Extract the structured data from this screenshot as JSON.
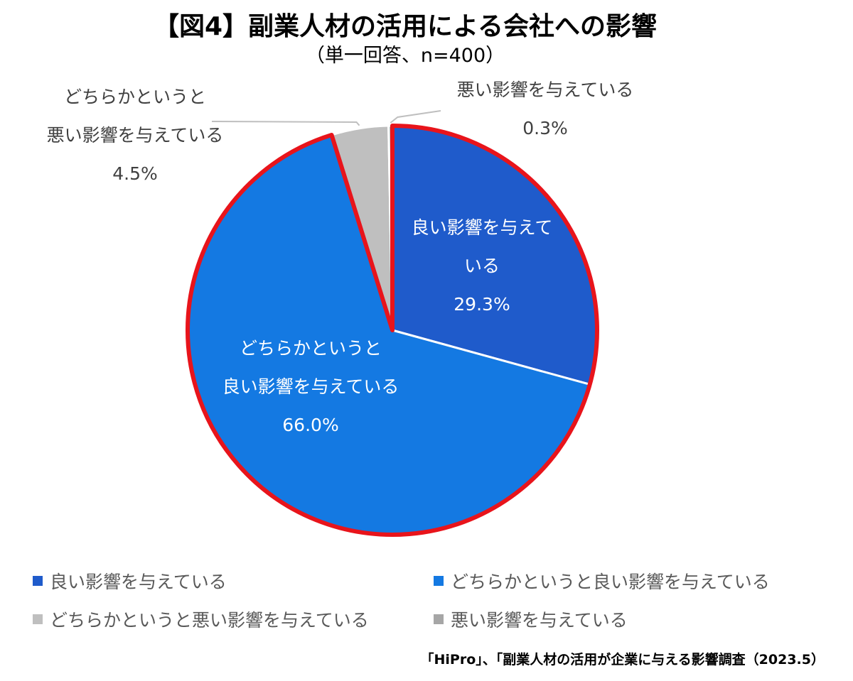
{
  "title": "【図4】副業人材の活用による会社への影響",
  "subtitle": "（単一回答、n=400）",
  "source": "「HiPro」、「副業人材の活用が企業に与える影響調査（2023.5）",
  "colors": {
    "highlight_border": "#E8141B",
    "label_dark": "#404040",
    "label_light": "#ffffff",
    "leader_line": "#bfbfbf"
  },
  "chart_data": {
    "type": "pie",
    "unit": "%",
    "start": "12 o'clock, clockwise",
    "slices": [
      {
        "name": "良い影響を与えている",
        "value": 29.3,
        "value_label": "29.3%",
        "color": "#1F5BCB",
        "label_lines": [
          "良い影響を与えて",
          "いる"
        ],
        "label_inside": true
      },
      {
        "name": "どちらかというと良い影響を与えている",
        "value": 66.0,
        "value_label": "66.0%",
        "color": "#1479E2",
        "label_lines": [
          "どちらかというと",
          "良い影響を与えている"
        ],
        "label_inside": true
      },
      {
        "name": "どちらかというと悪い影響を与えている",
        "value": 4.5,
        "value_label": "4.5%",
        "color": "#BFBFBF",
        "label_lines": [
          "どちらかというと",
          "悪い影響を与えている"
        ],
        "label_inside": false
      },
      {
        "name": "悪い影響を与えている",
        "value": 0.3,
        "value_label": "0.3%",
        "color": "#A6A6A6",
        "label_lines": [
          "悪い影響を与えている"
        ],
        "label_inside": false
      }
    ],
    "legend": {
      "position": "bottom",
      "items": [
        {
          "label": "良い影響を与えている",
          "color": "#1F5BCB"
        },
        {
          "label": "どちらかというと良い影響を与えている",
          "color": "#1479E2"
        },
        {
          "label": "どちらかというと悪い影響を与えている",
          "color": "#BFBFBF"
        },
        {
          "label": "悪い影響を与えている",
          "color": "#A6A6A6"
        }
      ]
    }
  }
}
